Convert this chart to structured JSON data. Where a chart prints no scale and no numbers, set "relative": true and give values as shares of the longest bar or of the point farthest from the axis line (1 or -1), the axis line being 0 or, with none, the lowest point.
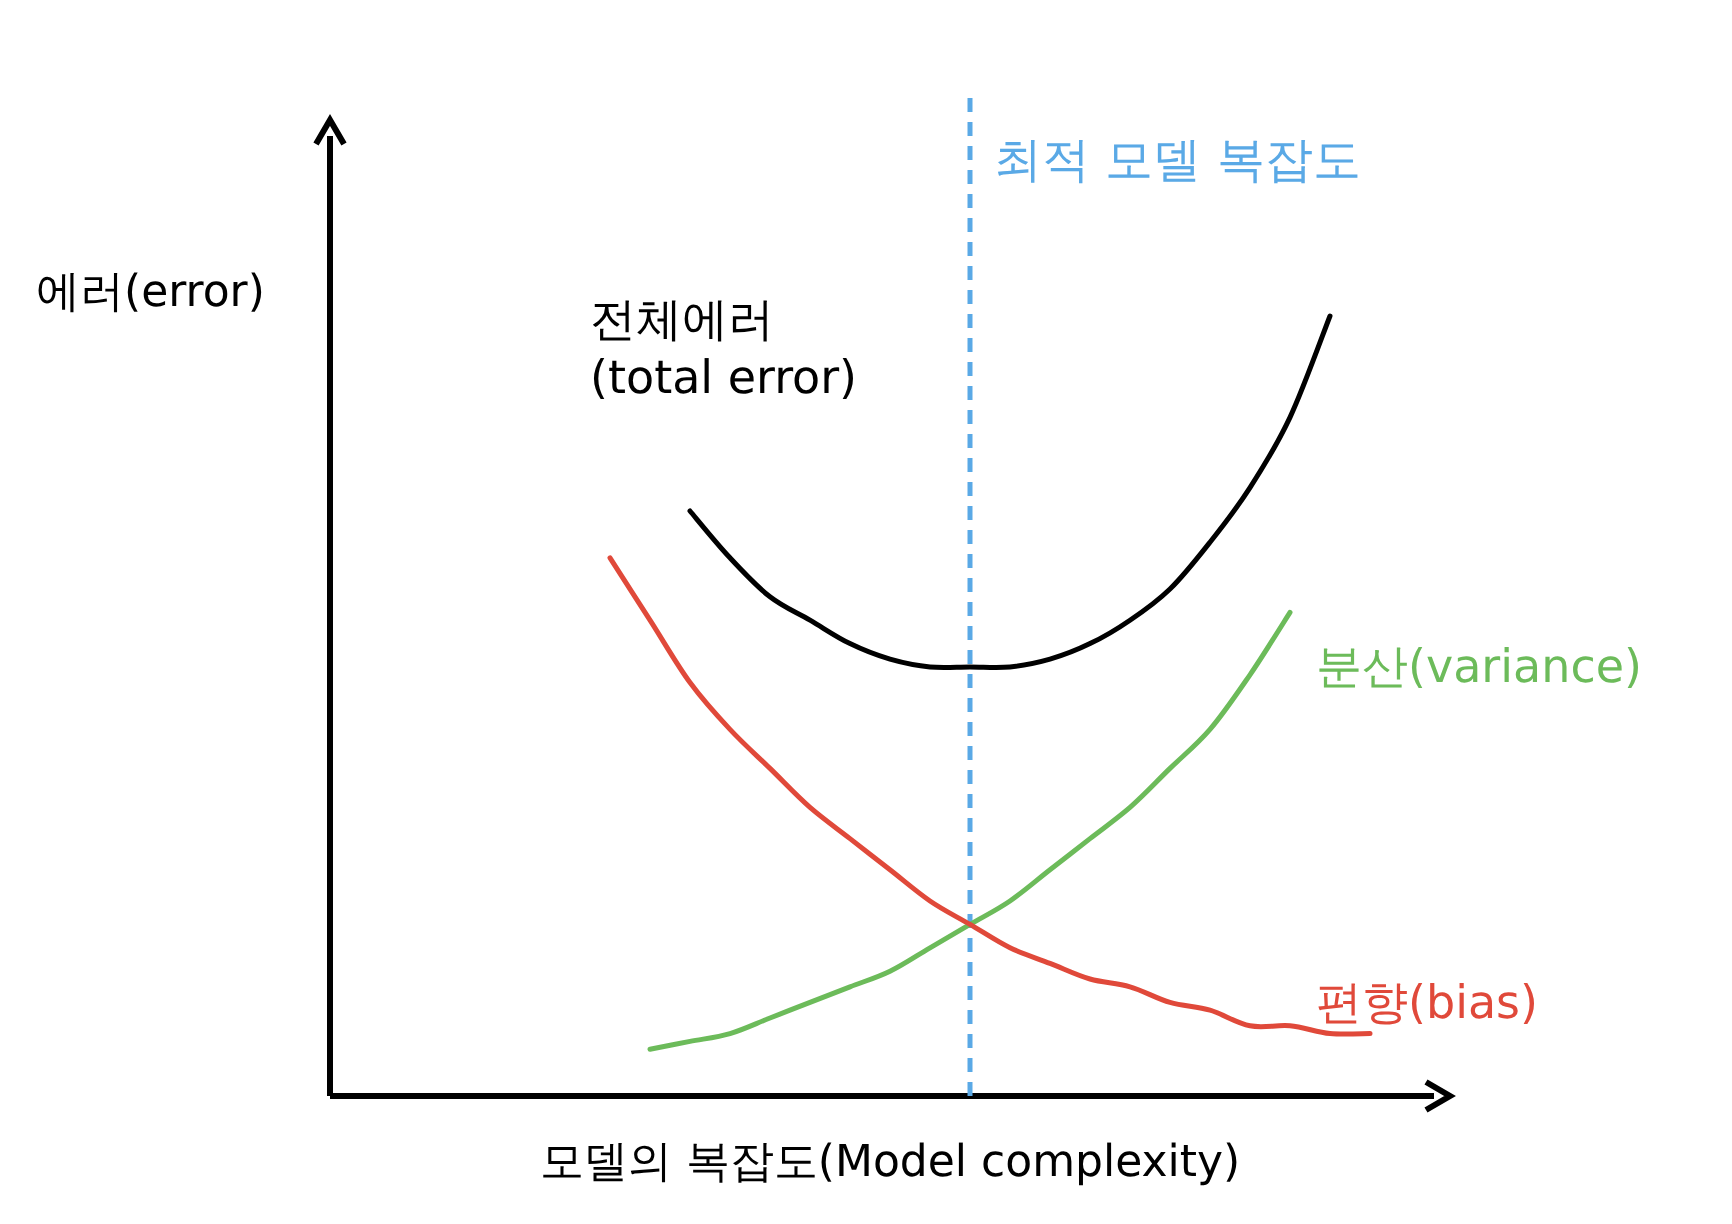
{
  "chart_data": {
    "type": "line",
    "relative": true,
    "xlabel": "모델의 복잡도(Model complexity)",
    "ylabel": "에러(error)",
    "categories": [
      null,
      null,
      null,
      null,
      null,
      null,
      null,
      null,
      null,
      null,
      null,
      null,
      null,
      null,
      null,
      null,
      null,
      null,
      null,
      null,
      null,
      null,
      null,
      null,
      null,
      null,
      null,
      null
    ],
    "series": [
      {
        "name": "전체에러\n(total error)",
        "color": "#000000",
        "values": [
          null,
          null,
          null,
          null,
          null,
          null,
          null,
          null,
          null,
          0.75,
          0.69,
          0.64,
          0.61,
          0.58,
          0.56,
          0.55,
          0.55,
          0.55,
          0.56,
          0.58,
          0.61,
          0.65,
          0.71,
          0.78,
          0.87,
          1.0,
          null,
          null
        ]
      },
      {
        "name": "분산(variance)",
        "color": "#6cbb5a",
        "values": [
          null,
          null,
          null,
          null,
          null,
          null,
          null,
          null,
          0.06,
          0.07,
          0.08,
          0.1,
          0.12,
          0.14,
          0.16,
          0.19,
          0.22,
          0.25,
          0.29,
          0.33,
          0.37,
          0.42,
          0.47,
          0.54,
          0.62,
          null,
          null,
          null
        ]
      },
      {
        "name": "편향(bias)",
        "color": "#e0493a",
        "values": [
          null,
          null,
          null,
          null,
          null,
          null,
          null,
          0.69,
          0.61,
          0.53,
          0.47,
          0.42,
          0.37,
          0.33,
          0.29,
          0.25,
          0.22,
          0.19,
          0.17,
          0.15,
          0.14,
          0.12,
          0.11,
          0.09,
          0.09,
          0.08,
          0.08,
          null
        ]
      }
    ],
    "annotations": [
      "최적 모델 복잡도"
    ],
    "marker": "none",
    "line_style": "solid"
  }
}
